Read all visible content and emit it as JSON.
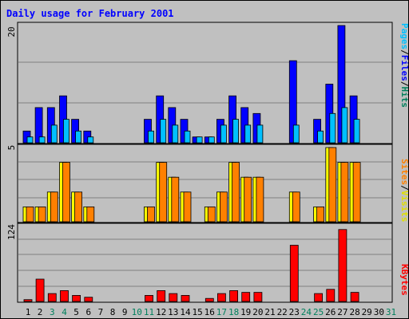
{
  "chart_data": [
    {
      "type": "bar",
      "title": "Daily usage for February 2001",
      "categories": [
        "1",
        "2",
        "3",
        "4",
        "5",
        "6",
        "7",
        "8",
        "9",
        "10",
        "11",
        "12",
        "13",
        "14",
        "15",
        "16",
        "17",
        "18",
        "19",
        "20",
        "21",
        "22",
        "23",
        "24",
        "25",
        "26",
        "27",
        "28",
        "29",
        "30",
        "31"
      ],
      "weekend_days": [
        3,
        4,
        10,
        11,
        17,
        18,
        24,
        25,
        31
      ],
      "max_label": "20",
      "ylim": [
        0,
        20
      ],
      "legend": [
        "Pages",
        "/",
        "Files",
        "/",
        "Hits"
      ],
      "series": [
        {
          "name": "Hits",
          "color": "#00805c",
          "values": [
            0,
            0,
            0,
            0,
            0,
            0,
            0,
            0,
            0,
            0,
            0,
            0,
            0,
            0,
            0,
            0,
            0,
            0,
            0,
            0,
            0,
            0,
            0,
            0,
            0,
            0,
            0,
            0,
            0,
            0,
            0
          ]
        },
        {
          "name": "Files",
          "color": "#0000ff",
          "values": [
            2,
            6,
            6,
            8,
            4,
            2,
            0,
            0,
            0,
            0,
            4,
            8,
            6,
            4,
            1,
            1,
            4,
            8,
            6,
            5,
            0,
            0,
            14,
            0,
            4,
            10,
            20,
            8,
            0,
            0,
            0
          ]
        },
        {
          "name": "Pages",
          "color": "#00c0ff",
          "values": [
            1,
            1,
            3,
            4,
            2,
            1,
            0,
            0,
            0,
            0,
            2,
            4,
            3,
            2,
            1,
            1,
            3,
            4,
            3,
            3,
            0,
            0,
            3,
            0,
            2,
            5,
            6,
            4,
            0,
            0,
            0
          ]
        }
      ]
    },
    {
      "type": "bar",
      "max_label": "5",
      "ylim": [
        0,
        5
      ],
      "legend": [
        "Sites",
        "/",
        "Visits"
      ],
      "series": [
        {
          "name": "Visits",
          "color": "#ffff00",
          "values": [
            1,
            1,
            2,
            4,
            2,
            1,
            0,
            0,
            0,
            0,
            1,
            4,
            3,
            2,
            0,
            1,
            2,
            4,
            3,
            3,
            0,
            0,
            2,
            0,
            1,
            5,
            4,
            4,
            0,
            0,
            0
          ]
        },
        {
          "name": "Sites",
          "color": "#ff8000",
          "values": [
            1,
            1,
            2,
            4,
            2,
            1,
            0,
            0,
            0,
            0,
            1,
            4,
            3,
            2,
            0,
            1,
            2,
            4,
            3,
            3,
            0,
            0,
            2,
            0,
            1,
            5,
            4,
            4,
            0,
            0,
            0
          ]
        }
      ]
    },
    {
      "type": "bar",
      "max_label": "124",
      "ylim": [
        0,
        124
      ],
      "legend": [
        "KBytes"
      ],
      "series": [
        {
          "name": "KBytes",
          "color": "#ff0000",
          "values": [
            3,
            37,
            13,
            18,
            10,
            7,
            0,
            0,
            0,
            0,
            10,
            18,
            13,
            10,
            0,
            5,
            13,
            18,
            15,
            15,
            0,
            0,
            93,
            0,
            13,
            20,
            119,
            15,
            0,
            0,
            0
          ]
        }
      ]
    }
  ]
}
